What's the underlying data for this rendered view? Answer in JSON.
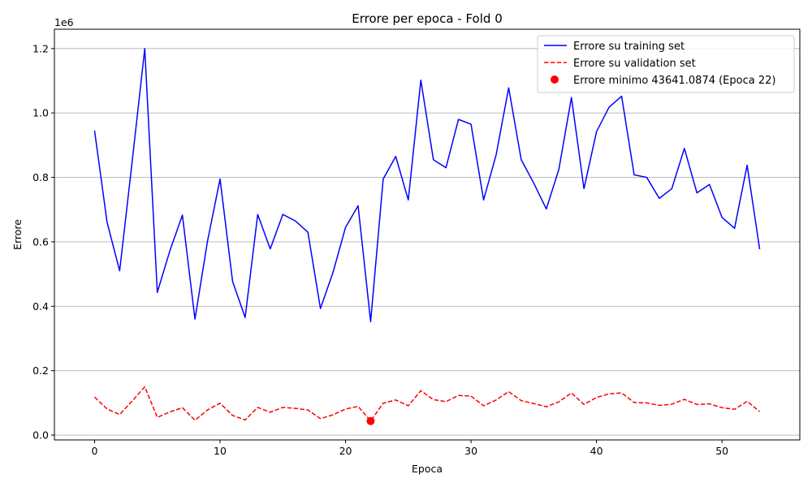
{
  "chart_data": {
    "type": "line",
    "title": "Errore per epoca - Fold 0",
    "xlabel": "Epoca",
    "ylabel": "Errore",
    "y_scale_label": "1e6",
    "xlim": [
      -3.2,
      56.2
    ],
    "ylim": [
      -15000,
      1260000
    ],
    "x_ticks": [
      0,
      10,
      20,
      30,
      40,
      50
    ],
    "x_tick_labels": [
      "0",
      "10",
      "20",
      "30",
      "40",
      "50"
    ],
    "y_ticks": [
      0,
      200000,
      400000,
      600000,
      800000,
      1000000,
      1200000
    ],
    "y_tick_labels": [
      "0.0",
      "0.2",
      "0.4",
      "0.6",
      "0.8",
      "1.0",
      "1.2"
    ],
    "grid": "horizontal",
    "legend_position": "top-right",
    "series": [
      {
        "name": "Errore su training set",
        "color": "#0000ff",
        "style": "solid",
        "x": [
          0,
          1,
          2,
          3,
          4,
          5,
          6,
          7,
          8,
          9,
          10,
          11,
          12,
          13,
          14,
          15,
          16,
          17,
          18,
          19,
          20,
          21,
          22,
          23,
          24,
          25,
          26,
          27,
          28,
          29,
          30,
          31,
          32,
          33,
          34,
          35,
          36,
          37,
          38,
          39,
          40,
          41,
          42,
          43,
          44,
          45,
          46,
          47,
          48,
          49,
          50,
          51,
          52,
          53
        ],
        "values": [
          945000,
          660000,
          510000,
          850000,
          1200000,
          443000,
          572000,
          683000,
          360000,
          602000,
          795000,
          477000,
          365000,
          685000,
          578000,
          685000,
          665000,
          630000,
          393000,
          505000,
          645000,
          712000,
          352000,
          795000,
          865000,
          730000,
          1102000,
          855000,
          830000,
          980000,
          965000,
          730000,
          870000,
          1078000,
          855000,
          782000,
          702000,
          825000,
          1048000,
          765000,
          942000,
          1018000,
          1052000,
          808000,
          800000,
          735000,
          765000,
          890000,
          752000,
          778000,
          676000,
          642000,
          838000,
          577000
        ]
      },
      {
        "name": "Errore su validation set",
        "color": "#ff0000",
        "style": "dashed",
        "x": [
          0,
          1,
          2,
          3,
          4,
          5,
          6,
          7,
          8,
          9,
          10,
          11,
          12,
          13,
          14,
          15,
          16,
          17,
          18,
          19,
          20,
          21,
          22,
          23,
          24,
          25,
          26,
          27,
          28,
          29,
          30,
          31,
          32,
          33,
          34,
          35,
          36,
          37,
          38,
          39,
          40,
          41,
          42,
          43,
          44,
          45,
          46,
          47,
          48,
          49,
          50,
          51,
          52,
          53
        ],
        "values": [
          118000,
          81000,
          64000,
          106000,
          150000,
          55000,
          72000,
          85000,
          46000,
          78000,
          99000,
          61000,
          47000,
          86000,
          71000,
          86000,
          83000,
          78000,
          51000,
          63000,
          81000,
          89000,
          43641,
          99000,
          109000,
          91000,
          138000,
          110000,
          104000,
          123000,
          121000,
          91000,
          109000,
          135000,
          107000,
          98000,
          88000,
          103000,
          131000,
          95000,
          117000,
          128000,
          131000,
          101000,
          100000,
          92000,
          96000,
          111000,
          95000,
          97000,
          85000,
          80000,
          105000,
          73000
        ]
      }
    ],
    "marker": {
      "name": "Errore minimo 43641.0874 (Epoca 22)",
      "color": "#ff0000",
      "x": 22,
      "y": 43641.0874
    }
  }
}
